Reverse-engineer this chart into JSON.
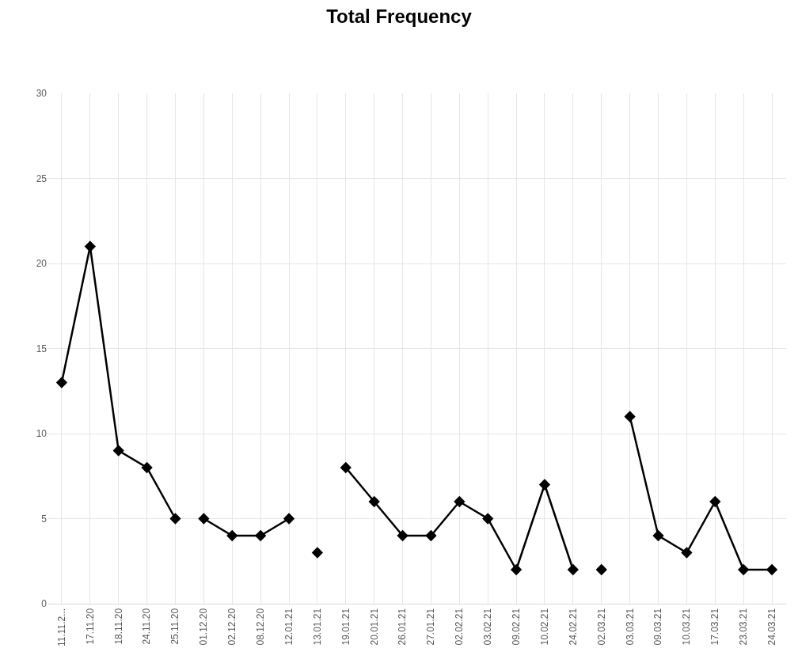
{
  "chart_data": {
    "type": "line",
    "title": "Total Frequency",
    "categories": [
      "11.11.2...",
      "17.11.20",
      "18.11.20",
      "24.11.20",
      "25.11.20",
      "01.12.20",
      "02.12.20",
      "08.12.20",
      "12.01.21",
      "13.01.21",
      "19.01.21",
      "20.01.21",
      "26.01.21",
      "27.01.21",
      "02.02.21",
      "03.02.21",
      "09.02.21",
      "10.02.21",
      "24.02.21",
      "02.03.21",
      "03.03.21",
      "09.03.21",
      "10.03.21",
      "17.03.21",
      "23.03.21",
      "24.03.21"
    ],
    "series": [
      {
        "color": "#000000",
        "values": [
          13,
          21,
          9,
          8,
          5,
          null,
          null,
          null,
          null,
          null,
          null,
          null,
          null,
          null,
          null,
          null,
          null,
          null,
          null,
          null,
          null,
          null,
          null,
          null,
          null,
          null
        ]
      },
      {
        "color": "#000000",
        "values": [
          null,
          null,
          null,
          null,
          null,
          5,
          4,
          4,
          5,
          null,
          null,
          null,
          null,
          null,
          null,
          null,
          null,
          null,
          null,
          null,
          null,
          null,
          null,
          null,
          null,
          null
        ]
      },
      {
        "color": "#000000",
        "values": [
          null,
          null,
          null,
          null,
          null,
          null,
          null,
          null,
          null,
          3,
          null,
          null,
          null,
          null,
          null,
          null,
          null,
          null,
          null,
          null,
          null,
          null,
          null,
          null,
          null,
          null
        ]
      },
      {
        "color": "#000000",
        "values": [
          null,
          null,
          null,
          null,
          null,
          null,
          null,
          null,
          null,
          null,
          8,
          6,
          4,
          4,
          6,
          5,
          2,
          7,
          2,
          null,
          null,
          null,
          null,
          null,
          null,
          null
        ]
      },
      {
        "color": "#000000",
        "values": [
          null,
          null,
          null,
          null,
          null,
          null,
          null,
          null,
          null,
          null,
          null,
          null,
          null,
          null,
          null,
          null,
          null,
          null,
          null,
          2,
          null,
          null,
          null,
          null,
          null,
          null
        ]
      },
      {
        "color": "#000000",
        "values": [
          null,
          null,
          null,
          null,
          null,
          null,
          null,
          null,
          null,
          null,
          null,
          null,
          null,
          null,
          null,
          null,
          null,
          null,
          null,
          null,
          11,
          4,
          3,
          6,
          2,
          2
        ]
      }
    ],
    "ylim": [
      0,
      30
    ],
    "yticks": [
      0,
      5,
      10,
      15,
      20,
      25,
      30
    ],
    "grid": true,
    "marker": "diamond",
    "line_style": "solid"
  }
}
